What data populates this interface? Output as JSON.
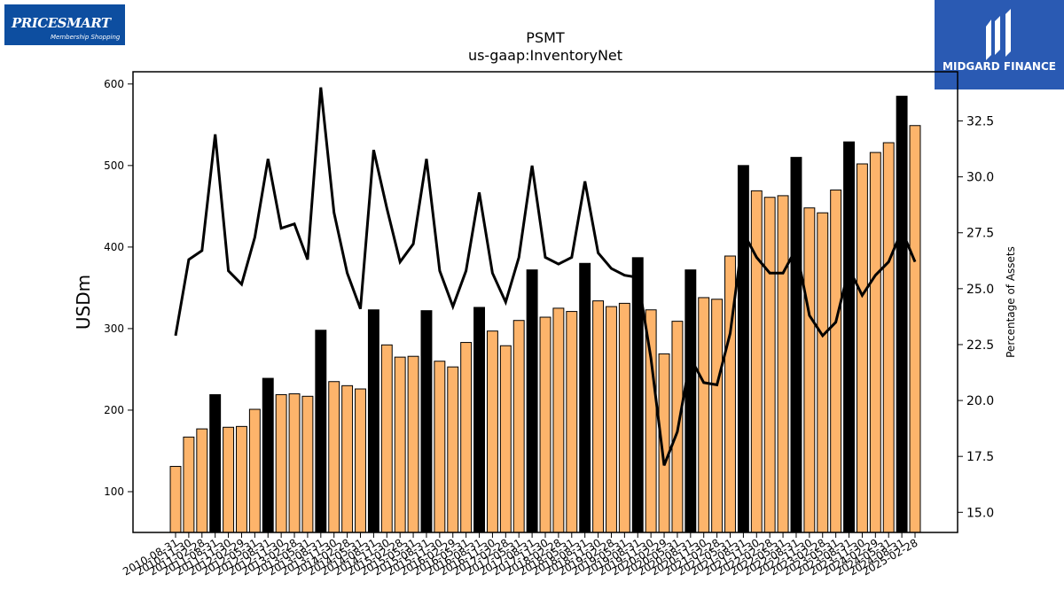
{
  "logos": {
    "left_brand": "PRICESMART",
    "left_tagline": "Membership Shopping",
    "right_name": "MIDGARD FINANCE"
  },
  "chart_data": {
    "type": "bar",
    "title": "PSMT",
    "subtitle": "us-gaap:InventoryNet",
    "ylabel": "USDm",
    "y2label": "Percentage of Assets",
    "ylim": [
      50,
      615
    ],
    "y2lim": [
      14.1,
      34.7
    ],
    "yticks": [
      100,
      200,
      300,
      400,
      500,
      600
    ],
    "y2ticks": [
      15.0,
      17.5,
      20.0,
      22.5,
      25.0,
      27.5,
      30.0,
      32.5
    ],
    "colors": {
      "bar": "#fdb46b",
      "bar_highlight": "#000000",
      "line": "#000000"
    },
    "categories": [
      "2010-08-31",
      "2010-11-30",
      "2011-02-28",
      "2011-08-31",
      "2011-11-30",
      "2012-02-29",
      "2012-05-31",
      "2012-08-31",
      "2012-11-30",
      "2013-02-28",
      "2013-05-31",
      "2013-08-31",
      "2013-11-30",
      "2014-02-28",
      "2014-05-31",
      "2014-08-31",
      "2014-11-30",
      "2015-02-28",
      "2015-05-31",
      "2015-08-31",
      "2015-11-30",
      "2016-02-29",
      "2016-05-31",
      "2016-08-31",
      "2016-11-30",
      "2017-02-28",
      "2017-05-31",
      "2017-08-31",
      "2017-11-30",
      "2018-02-28",
      "2018-05-31",
      "2018-08-31",
      "2018-11-30",
      "2019-02-28",
      "2019-05-31",
      "2019-08-31",
      "2019-11-30",
      "2020-02-29",
      "2020-05-31",
      "2020-08-31",
      "2020-11-30",
      "2021-02-28",
      "2021-05-31",
      "2021-08-31",
      "2021-11-30",
      "2022-02-28",
      "2022-05-31",
      "2022-08-31",
      "2022-11-30",
      "2023-02-28",
      "2023-05-31",
      "2023-08-31",
      "2023-11-30",
      "2024-02-29",
      "2024-05-31",
      "2024-08-31",
      "2025-02-28"
    ],
    "series": [
      {
        "values": [
          131,
          167,
          177,
          219,
          179,
          180,
          201,
          239,
          219,
          220,
          217,
          298,
          235,
          230,
          226,
          323,
          280,
          265,
          266,
          322,
          260,
          253,
          283,
          326,
          297,
          279,
          310,
          372,
          314,
          325,
          321,
          380,
          334,
          327,
          331,
          387,
          323,
          269,
          309,
          372,
          338,
          336,
          389,
          500,
          469,
          461,
          463,
          510,
          448,
          442,
          470,
          529,
          502,
          516,
          528,
          585,
          549
        ],
        "highlight": [
          false,
          false,
          false,
          true,
          false,
          false,
          false,
          true,
          false,
          false,
          false,
          true,
          false,
          false,
          false,
          true,
          false,
          false,
          false,
          true,
          false,
          false,
          false,
          true,
          false,
          false,
          false,
          true,
          false,
          false,
          false,
          true,
          false,
          false,
          false,
          true,
          false,
          false,
          false,
          true,
          false,
          false,
          false,
          true,
          false,
          false,
          false,
          true,
          false,
          false,
          false,
          true,
          false,
          false,
          false,
          true,
          false
        ]
      },
      {
        "type": "line",
        "axis": "right",
        "values": [
          22.9,
          26.3,
          26.7,
          31.9,
          25.8,
          25.2,
          27.3,
          30.8,
          27.7,
          27.9,
          26.3,
          34.0,
          28.4,
          25.7,
          24.1,
          31.2,
          28.6,
          26.2,
          27.0,
          30.8,
          25.8,
          24.2,
          25.8,
          29.3,
          25.7,
          24.4,
          26.4,
          30.5,
          26.4,
          26.1,
          26.4,
          29.8,
          26.6,
          25.9,
          25.6,
          25.5,
          21.9,
          17.1,
          18.6,
          21.9,
          20.8,
          20.7,
          23.0,
          27.5,
          26.4,
          25.7,
          25.7,
          26.8,
          23.8,
          22.9,
          23.5,
          25.9,
          24.7,
          25.6,
          26.2,
          27.6,
          26.2
        ]
      }
    ]
  }
}
